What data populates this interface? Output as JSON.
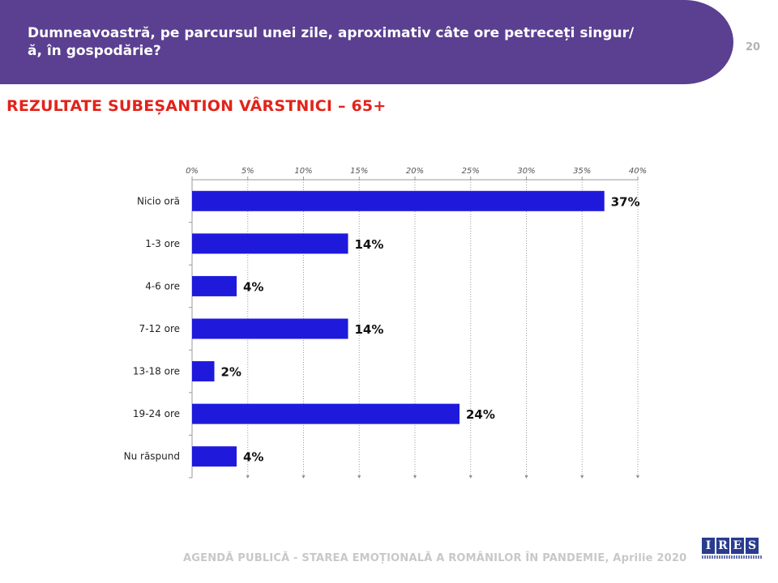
{
  "slide": {
    "question": "Dumneavoastră, pe parcursul unei zile, aproximativ câte ore petreceți singur/ă, în gospodărie?",
    "page_number": "20",
    "subtitle": "REZULTATE SUBEȘANTION VÂRSTNICI – 65+",
    "footer": "AGENDĂ PUBLICĂ - STAREA EMOȚIONALĂ A ROMÂNILOR ÎN PANDEMIE, Aprilie 2020",
    "logo_letters": [
      "I",
      "R",
      "E",
      "S"
    ]
  },
  "chart_data": {
    "type": "bar",
    "orientation": "horizontal",
    "categories": [
      "Nicio oră",
      "1-3 ore",
      "4-6 ore",
      "7-12 ore",
      "13-18 ore",
      "19-24 ore",
      "Nu răspund"
    ],
    "values": [
      37,
      14,
      4,
      14,
      2,
      24,
      4
    ],
    "value_labels": [
      "37%",
      "14%",
      "4%",
      "14%",
      "2%",
      "24%",
      "4%"
    ],
    "x_ticks": [
      0,
      5,
      10,
      15,
      20,
      25,
      30,
      35,
      40
    ],
    "x_tick_labels": [
      "0%",
      "5%",
      "10%",
      "15%",
      "20%",
      "25%",
      "30%",
      "35%",
      "40%"
    ],
    "xlim": [
      0,
      40
    ],
    "grid": true,
    "axis_position": "top",
    "bar_color": "#1f1adb"
  }
}
